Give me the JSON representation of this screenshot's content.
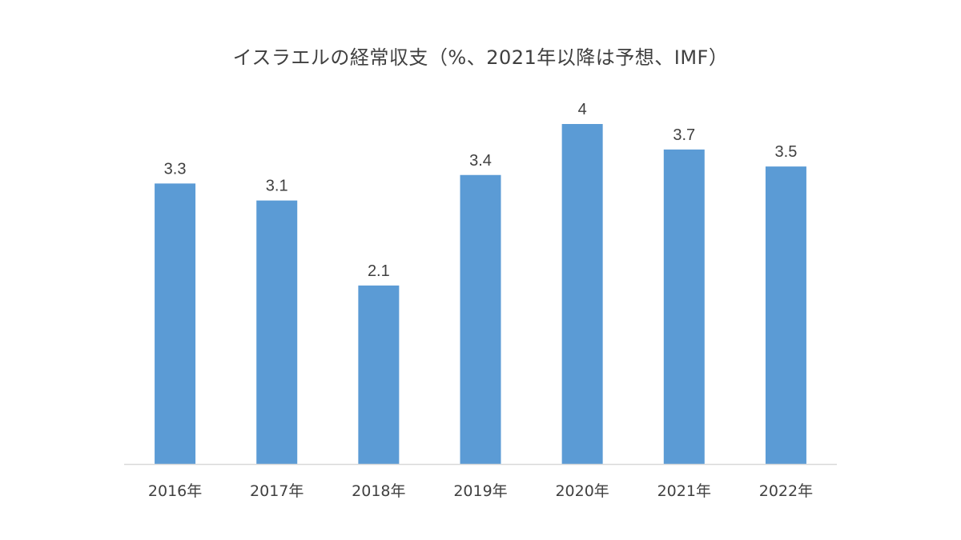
{
  "chart_data": {
    "type": "bar",
    "title": "イスラエルの経常収支（%、2021年以降は予想、IMF）",
    "categories": [
      "2016年",
      "2017年",
      "2018年",
      "2019年",
      "2020年",
      "2021年",
      "2022年"
    ],
    "values": [
      3.3,
      3.1,
      2.1,
      3.4,
      4,
      3.7,
      3.5
    ],
    "data_labels": [
      "3.3",
      "3.1",
      "2.1",
      "3.4",
      "4",
      "3.7",
      "3.5"
    ],
    "xlabel": "",
    "ylabel": "",
    "ylim": [
      0,
      4
    ],
    "grid": false,
    "legend": "none",
    "bar_color": "#5B9BD5",
    "axis_color": "#D9D9D9",
    "text_color": "#404040"
  }
}
